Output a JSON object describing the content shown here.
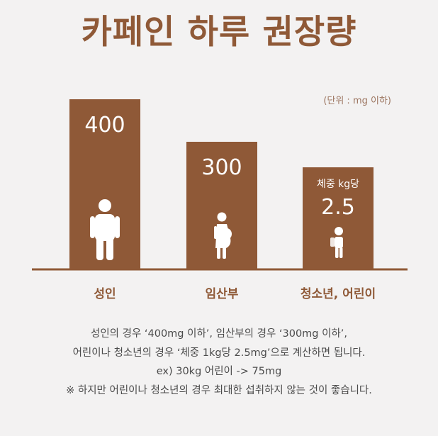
{
  "chart_data": {
    "type": "bar",
    "title": "카페인 하루 권장량",
    "unit_note": "(단위 : mg 이하)",
    "categories": [
      "성인",
      "임산부",
      "청소년, 어린이"
    ],
    "values": [
      400,
      300,
      2.5
    ],
    "data_labels": [
      "400",
      "300",
      "2.5"
    ],
    "label_prefixes": [
      "",
      "",
      "체중 kg당"
    ],
    "icons": [
      "adult-icon",
      "pregnant-woman-icon",
      "child-with-backpack-icon"
    ],
    "colors": {
      "bar": "#8f5937",
      "title": "#8f5937",
      "baseline": "#8f5937",
      "category_label": "#8f5937",
      "bar_text": "#ffffff"
    }
  },
  "notes": [
    "성인의 경우 ‘400mg 이하’, 임산부의 경우 ‘300mg 이하’,",
    "어린이나 청소년의 경우 ‘체중 1kg당 2.5mg’으로 계산하면 됩니다.",
    "ex) 30kg 어린이 -> 75mg",
    "※ 하지만 어린이나 청소년의 경우 최대한 섭취하지 않는 것이 좋습니다."
  ]
}
